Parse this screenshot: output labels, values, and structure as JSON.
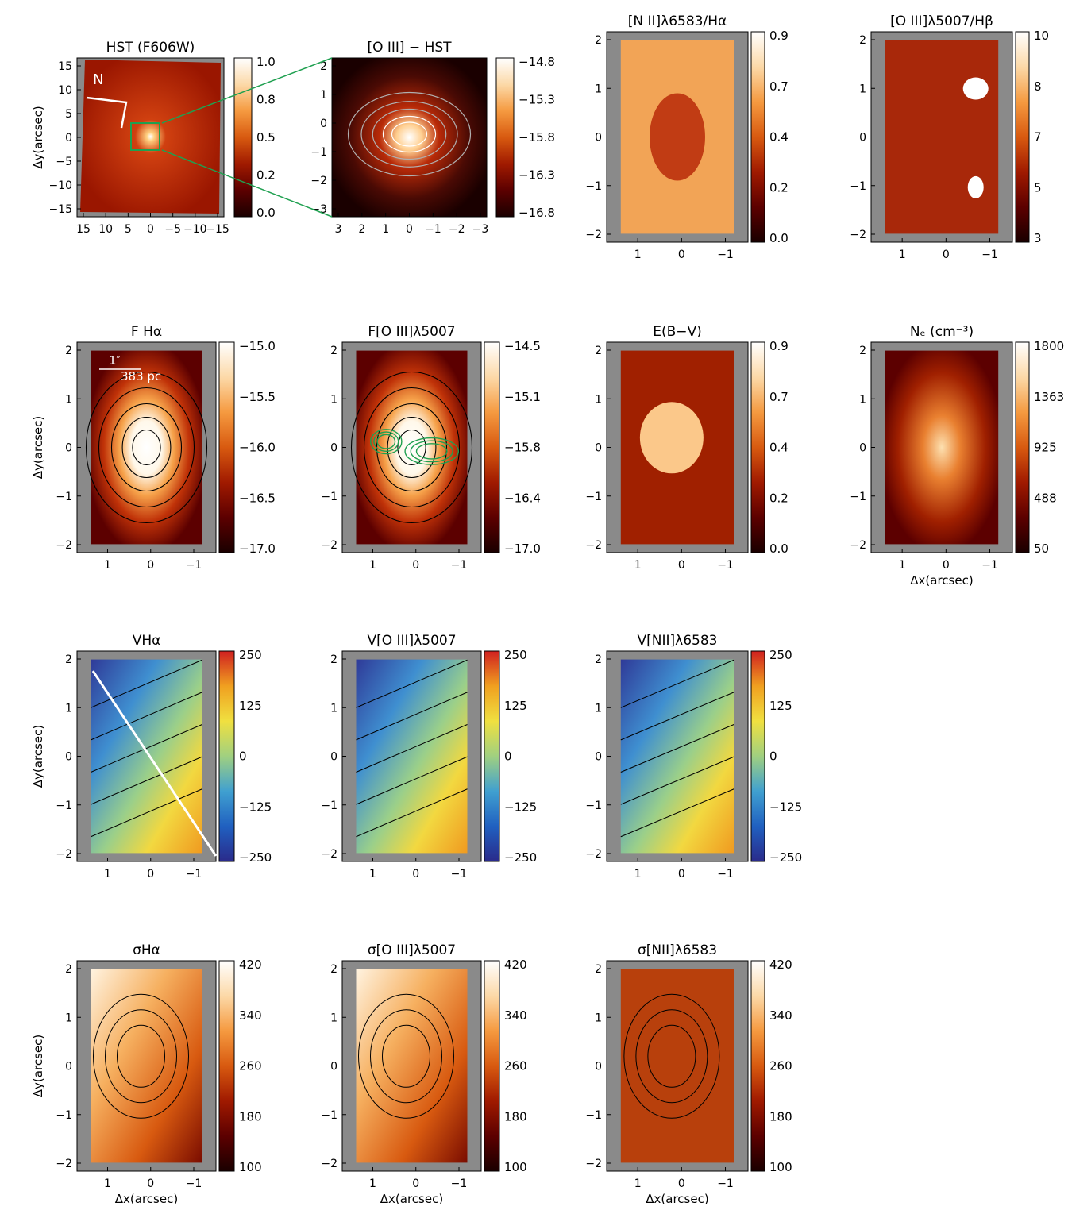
{
  "figure": {
    "hot_colors": [
      "#1a0000",
      "#5c0000",
      "#a01a00",
      "#d85a10",
      "#f59a40",
      "#fcd9a8",
      "#ffffff"
    ],
    "vel_colors": [
      "#2a2a8a",
      "#2060c0",
      "#40a0d0",
      "#a0d080",
      "#f0e040",
      "#f0a020",
      "#d02020"
    ],
    "green": "#1fa050",
    "panels": [
      {
        "title": "HST (F606W)",
        "colorbar": [
          "1.0",
          "0.8",
          "0.5",
          "0.2",
          "0.0"
        ],
        "cmap": "hot",
        "xticks": [
          "15",
          "10",
          "5",
          "0",
          "−5",
          "−10",
          "−15"
        ],
        "yticks": [
          "15",
          "10",
          "5",
          "0",
          "−5",
          "−10",
          "−15"
        ],
        "ylabel": "Δy(arcsec)",
        "xlabel": "",
        "annot": [
          "N"
        ]
      },
      {
        "title": "[O III] − HST",
        "colorbar": [
          "−14.8",
          "−15.3",
          "−15.8",
          "−16.3",
          "−16.8"
        ],
        "cmap": "hot",
        "xticks": [
          "3",
          "2",
          "1",
          "0",
          "−1",
          "−2",
          "−3"
        ],
        "yticks": [
          "2",
          "1",
          "0",
          "−1",
          "−2",
          "−3"
        ],
        "ylabel": "",
        "xlabel": "",
        "annot": []
      },
      {
        "title": "[N II]λ6583/Hα",
        "colorbar": [
          "0.9",
          "0.7",
          "0.4",
          "0.2",
          "0.0"
        ],
        "cmap": "hot",
        "xticks": [
          "1",
          "0",
          "−1"
        ],
        "yticks": [
          "2",
          "1",
          "0",
          "−1",
          "−2"
        ],
        "ylabel": "",
        "xlabel": "",
        "annot": []
      },
      {
        "title": "[O III]λ5007/Hβ",
        "colorbar": [
          "10",
          "8",
          "7",
          "5",
          "3"
        ],
        "cmap": "hot",
        "xticks": [
          "1",
          "0",
          "−1"
        ],
        "yticks": [
          "2",
          "1",
          "0",
          "−1",
          "−2"
        ],
        "ylabel": "",
        "xlabel": "",
        "annot": []
      },
      {
        "title": "F Hα",
        "colorbar": [
          "−15.0",
          "−15.5",
          "−16.0",
          "−16.5",
          "−17.0"
        ],
        "cmap": "hot",
        "xticks": [
          "1",
          "0",
          "−1"
        ],
        "yticks": [
          "2",
          "1",
          "0",
          "−1",
          "−2"
        ],
        "ylabel": "Δy(arcsec)",
        "xlabel": "",
        "annot": [
          "1″",
          "383 pc"
        ]
      },
      {
        "title": "F[O III]λ5007",
        "colorbar": [
          "−14.5",
          "−15.1",
          "−15.8",
          "−16.4",
          "−17.0"
        ],
        "cmap": "hot",
        "xticks": [
          "1",
          "0",
          "−1"
        ],
        "yticks": [
          "2",
          "1",
          "0",
          "−1",
          "−2"
        ],
        "ylabel": "",
        "xlabel": "",
        "annot": []
      },
      {
        "title": "E(B−V)",
        "colorbar": [
          "0.9",
          "0.7",
          "0.4",
          "0.2",
          "0.0"
        ],
        "cmap": "hot",
        "xticks": [
          "1",
          "0",
          "−1"
        ],
        "yticks": [
          "2",
          "1",
          "0",
          "−1",
          "−2"
        ],
        "ylabel": "",
        "xlabel": "",
        "annot": []
      },
      {
        "title": "Nₑ (cm⁻³)",
        "colorbar": [
          "1800",
          "1363",
          "925",
          "488",
          "50"
        ],
        "cmap": "hot",
        "xticks": [
          "1",
          "0",
          "−1"
        ],
        "yticks": [
          "2",
          "1",
          "0",
          "−1",
          "−2"
        ],
        "ylabel": "",
        "xlabel": "Δx(arcsec)",
        "annot": []
      },
      {
        "title": "VHα",
        "colorbar": [
          "250",
          "125",
          "0",
          "−125",
          "−250"
        ],
        "cmap": "vel",
        "xticks": [
          "1",
          "0",
          "−1"
        ],
        "yticks": [
          "2",
          "1",
          "0",
          "−1",
          "−2"
        ],
        "ylabel": "Δy(arcsec)",
        "xlabel": "",
        "annot": []
      },
      {
        "title": "V[O III]λ5007",
        "colorbar": [
          "250",
          "125",
          "0",
          "−125",
          "−250"
        ],
        "cmap": "vel",
        "xticks": [
          "1",
          "0",
          "−1"
        ],
        "yticks": [
          "2",
          "1",
          "0",
          "−1",
          "−2"
        ],
        "ylabel": "",
        "xlabel": "",
        "annot": []
      },
      {
        "title": "V[NII]λ6583",
        "colorbar": [
          "250",
          "125",
          "0",
          "−125",
          "−250"
        ],
        "cmap": "vel",
        "xticks": [
          "1",
          "0",
          "−1"
        ],
        "yticks": [
          "2",
          "1",
          "0",
          "−1",
          "−2"
        ],
        "ylabel": "",
        "xlabel": "",
        "annot": []
      },
      {
        "title": "σHα",
        "colorbar": [
          "420",
          "340",
          "260",
          "180",
          "100"
        ],
        "cmap": "hot",
        "xticks": [
          "1",
          "0",
          "−1"
        ],
        "yticks": [
          "2",
          "1",
          "0",
          "−1",
          "−2"
        ],
        "ylabel": "Δy(arcsec)",
        "xlabel": "Δx(arcsec)",
        "annot": []
      },
      {
        "title": "σ[O III]λ5007",
        "colorbar": [
          "420",
          "340",
          "260",
          "180",
          "100"
        ],
        "cmap": "hot",
        "xticks": [
          "1",
          "0",
          "−1"
        ],
        "yticks": [
          "2",
          "1",
          "0",
          "−1",
          "−2"
        ],
        "ylabel": "",
        "xlabel": "Δx(arcsec)",
        "annot": []
      },
      {
        "title": "σ[NII]λ6583",
        "colorbar": [
          "420",
          "340",
          "260",
          "180",
          "100"
        ],
        "cmap": "hot",
        "xticks": [
          "1",
          "0",
          "−1"
        ],
        "yticks": [
          "2",
          "1",
          "0",
          "−1",
          "−2"
        ],
        "ylabel": "",
        "xlabel": "Δx(arcsec)",
        "annot": []
      }
    ]
  },
  "chart_data": [
    {
      "type": "heatmap",
      "title": "HST (F606W)",
      "ylabel": "Δy(arcsec)",
      "xlim": [
        15,
        -15
      ],
      "ylim": [
        -15,
        15
      ],
      "colorbar_range": [
        0.0,
        1.0
      ]
    },
    {
      "type": "heatmap",
      "title": "[O III] − HST",
      "xlim": [
        3,
        -3
      ],
      "ylim": [
        -3,
        3
      ],
      "colorbar_range": [
        -16.8,
        -14.8
      ]
    },
    {
      "type": "heatmap",
      "title": "[N II]λ6583/Hα",
      "colorbar_range": [
        0.0,
        0.9
      ]
    },
    {
      "type": "heatmap",
      "title": "[O III]λ5007/Hβ",
      "colorbar_range": [
        3,
        10
      ]
    },
    {
      "type": "heatmap",
      "title": "F Hα",
      "ylabel": "Δy(arcsec)",
      "colorbar_range": [
        -17.0,
        -15.0
      ]
    },
    {
      "type": "heatmap",
      "title": "F[O III]λ5007",
      "colorbar_range": [
        -17.0,
        -14.5
      ]
    },
    {
      "type": "heatmap",
      "title": "E(B−V)",
      "colorbar_range": [
        0.0,
        0.9
      ]
    },
    {
      "type": "heatmap",
      "title": "Nₑ (cm⁻³)",
      "xlabel": "Δx(arcsec)",
      "colorbar_range": [
        50,
        1800
      ]
    },
    {
      "type": "heatmap",
      "title": "VHα",
      "ylabel": "Δy(arcsec)",
      "colorbar_range": [
        -250,
        250
      ]
    },
    {
      "type": "heatmap",
      "title": "V[O III]λ5007",
      "colorbar_range": [
        -250,
        250
      ]
    },
    {
      "type": "heatmap",
      "title": "V[NII]λ6583",
      "colorbar_range": [
        -250,
        250
      ]
    },
    {
      "type": "heatmap",
      "title": "σHα",
      "ylabel": "Δy(arcsec)",
      "xlabel": "Δx(arcsec)",
      "colorbar_range": [
        100,
        420
      ]
    },
    {
      "type": "heatmap",
      "title": "σ[O III]λ5007",
      "xlabel": "Δx(arcsec)",
      "colorbar_range": [
        100,
        420
      ]
    },
    {
      "type": "heatmap",
      "title": "σ[NII]λ6583",
      "xlabel": "Δx(arcsec)",
      "colorbar_range": [
        100,
        420
      ]
    }
  ]
}
